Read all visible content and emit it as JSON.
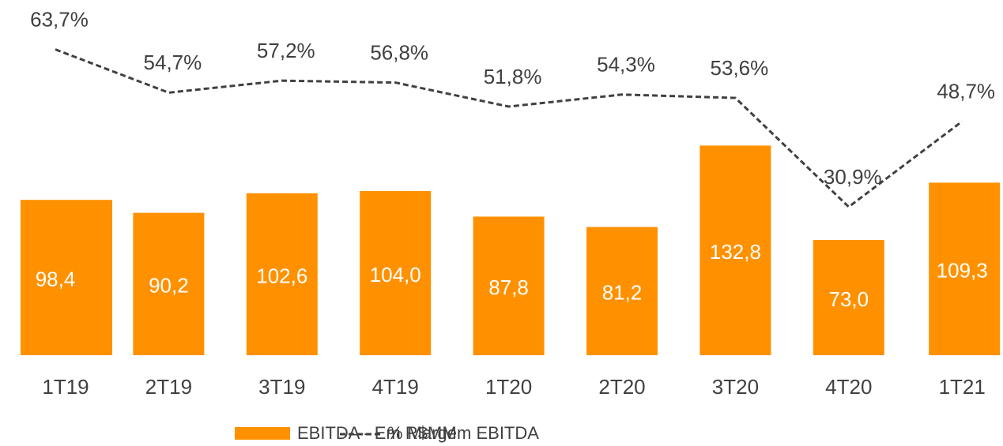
{
  "chart_data": {
    "type": "bar",
    "categories": [
      "1T19",
      "2T19",
      "3T19",
      "4T19",
      "1T20",
      "2T20",
      "3T20",
      "4T20",
      "1T21"
    ],
    "series": [
      {
        "name": "EBITDA - Em R$MM",
        "type": "bar",
        "color": "#ff9100",
        "values": [
          98.4,
          90.2,
          102.6,
          104.0,
          87.8,
          81.2,
          132.8,
          73.0,
          109.3
        ],
        "value_labels": [
          "98,4",
          "90,2",
          "102,6",
          "104,0",
          "87,8",
          "81,2",
          "132,8",
          "73,0",
          "109,3"
        ]
      },
      {
        "name": "% Margem EBITDA",
        "type": "line",
        "axis": "y2",
        "color": "#404040",
        "dashed": true,
        "values": [
          63.7,
          54.7,
          57.2,
          56.8,
          51.8,
          54.3,
          53.6,
          30.9,
          48.7
        ],
        "value_labels": [
          "63,7%",
          "54,7%",
          "57,2%",
          "56,8%",
          "51,8%",
          "54,3%",
          "53,6%",
          "30,9%",
          "48,7%"
        ]
      }
    ],
    "ylim": [
      0,
      225
    ],
    "y2lim": [
      0,
      74
    ],
    "legend": "bottom"
  }
}
